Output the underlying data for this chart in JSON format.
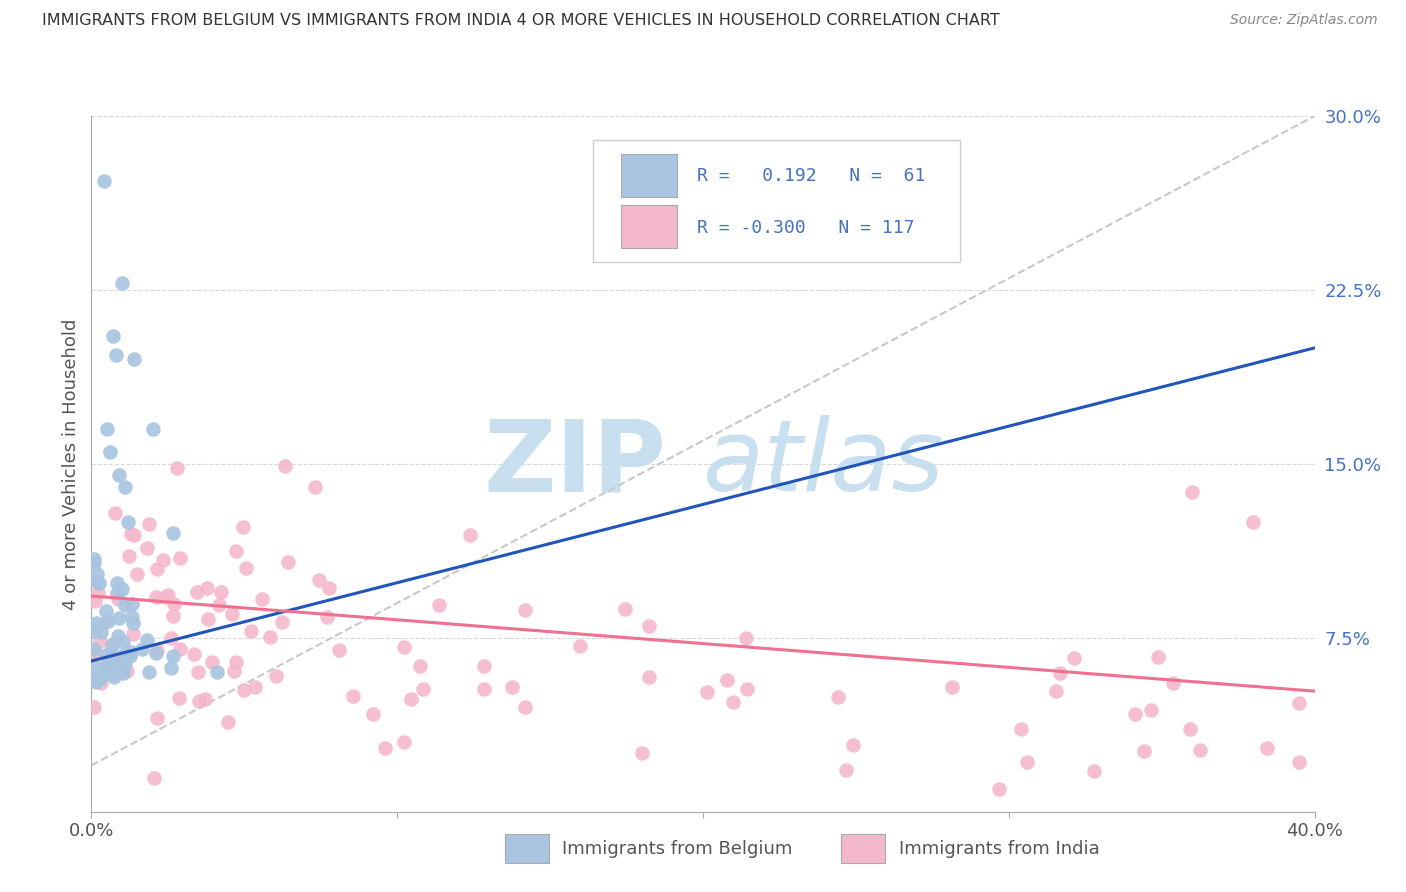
{
  "title": "IMMIGRANTS FROM BELGIUM VS IMMIGRANTS FROM INDIA 4 OR MORE VEHICLES IN HOUSEHOLD CORRELATION CHART",
  "source": "Source: ZipAtlas.com",
  "ylabel": "4 or more Vehicles in Household",
  "xlim": [
    0.0,
    0.4
  ],
  "ylim": [
    0.0,
    0.3
  ],
  "legend_R_belgium": "0.192",
  "legend_N_belgium": "61",
  "legend_R_india": "-0.300",
  "legend_N_india": "117",
  "belgium_scatter_color": "#a8c4e0",
  "india_scatter_color": "#f4b8cc",
  "belgium_line_color": "#2255bb",
  "india_line_color": "#f07090",
  "dash_line_color": "#c8c8c8",
  "grid_color": "#d8d8d8",
  "right_tick_color": "#4472c4",
  "watermark_color": "#c8dff0",
  "title_color": "#333333",
  "source_color": "#888888",
  "ylabel_color": "#555555"
}
